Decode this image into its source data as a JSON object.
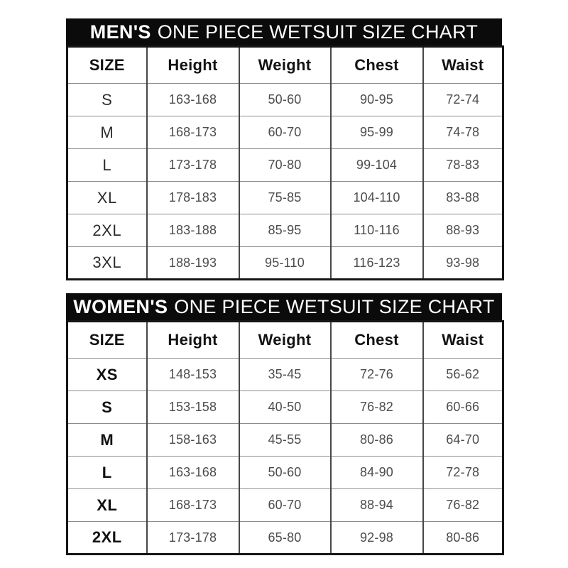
{
  "colors": {
    "banner_background": "#0b0b0b",
    "banner_text": "#ffffff",
    "table_border": "#161616",
    "grid_line": "#8c8c8c",
    "column_line": "#474747",
    "header_text": "#121212",
    "cell_text": "#4c4c4c"
  },
  "chart_data": [
    {
      "type": "table",
      "title": "MEN'S ONE PIECE WETSUIT SIZE CHART",
      "title_highlight": "MEN'S",
      "title_rest": "ONE PIECE WETSUIT SIZE CHART",
      "columns": [
        "SIZE",
        "Height",
        "Weight",
        "Chest",
        "Waist"
      ],
      "rows": [
        [
          "S",
          "163-168",
          "50-60",
          "90-95",
          "72-74"
        ],
        [
          "M",
          "168-173",
          "60-70",
          "95-99",
          "74-78"
        ],
        [
          "L",
          "173-178",
          "70-80",
          "99-104",
          "78-83"
        ],
        [
          "XL",
          "178-183",
          "75-85",
          "104-110",
          "83-88"
        ],
        [
          "2XL",
          "183-188",
          "85-95",
          "110-116",
          "88-93"
        ],
        [
          "3XL",
          "188-193",
          "95-110",
          "116-123",
          "93-98"
        ]
      ]
    },
    {
      "type": "table",
      "title": "WOMEN'S ONE PIECE WETSUIT SIZE CHART",
      "title_highlight": "WOMEN'S",
      "title_rest": "ONE PIECE WETSUIT SIZE CHART",
      "columns": [
        "SIZE",
        "Height",
        "Weight",
        "Chest",
        "Waist"
      ],
      "rows": [
        [
          "XS",
          "148-153",
          "35-45",
          "72-76",
          "56-62"
        ],
        [
          "S",
          "153-158",
          "40-50",
          "76-82",
          "60-66"
        ],
        [
          "M",
          "158-163",
          "45-55",
          "80-86",
          "64-70"
        ],
        [
          "L",
          "163-168",
          "50-60",
          "84-90",
          "72-78"
        ],
        [
          "XL",
          "168-173",
          "60-70",
          "88-94",
          "76-82"
        ],
        [
          "2XL",
          "173-178",
          "65-80",
          "92-98",
          "80-86"
        ]
      ]
    }
  ]
}
